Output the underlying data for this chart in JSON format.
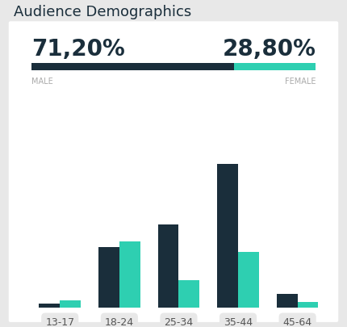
{
  "title": "Audience Demographics",
  "male_pct": "71,20%",
  "female_pct": "28,80%",
  "male_ratio": 0.712,
  "female_ratio": 0.288,
  "male_label": "MALE",
  "female_label": "FEMALE",
  "categories": [
    "13-17",
    "18-24",
    "25-34",
    "35-44",
    "45-64"
  ],
  "male_values": [
    1.5,
    22,
    30,
    52,
    5
  ],
  "female_values": [
    2.5,
    24,
    10,
    20,
    2
  ],
  "male_color": "#1a2e3b",
  "female_color": "#2ecfb1",
  "bg_color": "#e8e8e8",
  "panel_color": "#ffffff",
  "title_color": "#1a2e3b",
  "label_color": "#aaaaaa",
  "tick_color": "#555555",
  "bar_width": 0.35,
  "title_fontsize": 13,
  "pct_fontsize": 20,
  "label_fontsize": 7,
  "tick_fontsize": 9
}
